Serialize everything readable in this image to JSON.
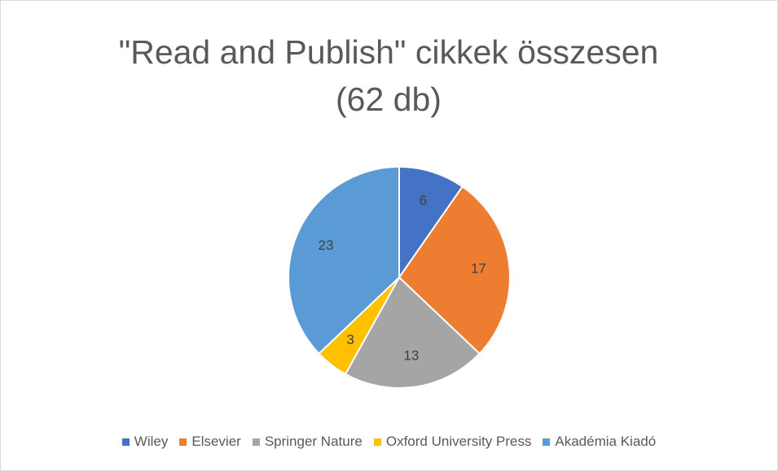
{
  "chart_data": {
    "type": "pie",
    "title": "\"Read and Publish\" cikkek összesen (62 db)",
    "categories": [
      "Wiley",
      "Elsevier",
      "Springer Nature",
      "Oxford University Press",
      "Akadémia Kiadó"
    ],
    "values": [
      6,
      17,
      13,
      3,
      23
    ],
    "colors": [
      "#4472c4",
      "#ed7d31",
      "#a5a5a5",
      "#ffc000",
      "#5b9bd5"
    ],
    "legend": "bottom"
  }
}
